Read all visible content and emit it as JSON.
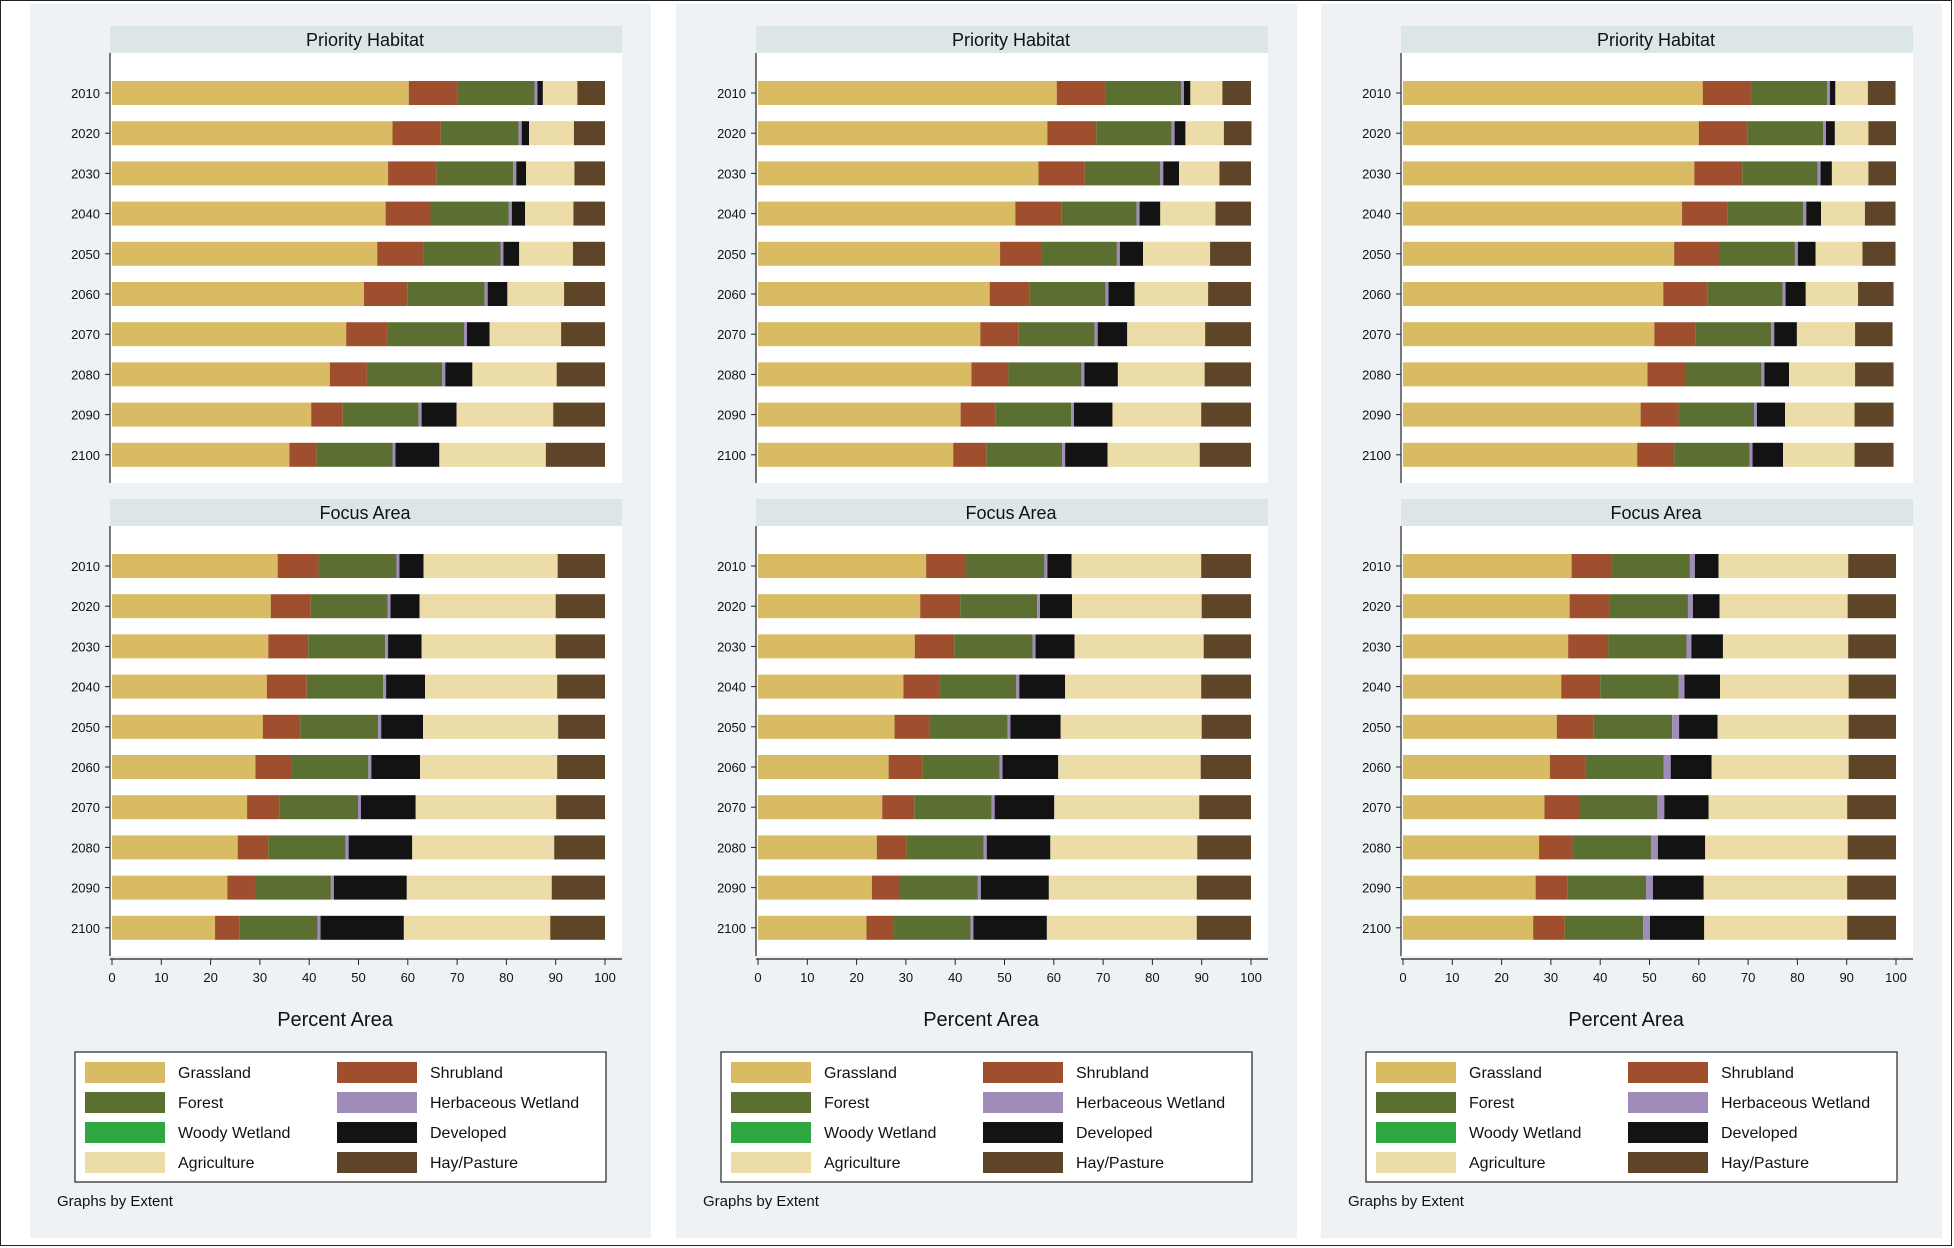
{
  "panels_note": "Graphs by Extent",
  "xlabel": "Percent Area",
  "xticks": [
    "0",
    "10",
    "20",
    "30",
    "40",
    "50",
    "60",
    "70",
    "80",
    "90",
    "100"
  ],
  "colors": {
    "Grassland": "#d8bb62",
    "Shrubland": "#a04f2e",
    "Forest": "#5b6f33",
    "Herbaceous Wetland": "#a08cb8",
    "Woody Wetland": "#2ea641",
    "Developed": "#131313",
    "Agriculture": "#ebdca8",
    "Hay/Pasture": "#5e4527"
  },
  "legend": [
    [
      "Grassland",
      "Shrubland"
    ],
    [
      "Forest",
      "Herbaceous Wetland"
    ],
    [
      "Woody Wetland",
      "Developed"
    ],
    [
      "Agriculture",
      "Hay/Pasture"
    ]
  ],
  "chart_data": [
    {
      "type": "bar",
      "orientation": "horizontal-stacked",
      "note": "Graphs by Extent",
      "xlabel": "Percent Area",
      "xlim": [
        0,
        100
      ],
      "series_order": [
        "Grassland",
        "Shrubland",
        "Forest",
        "Herbaceous Wetland",
        "Woody Wetland",
        "Developed",
        "Agriculture",
        "Hay/Pasture"
      ],
      "facets": [
        {
          "title": "Priority Habitat",
          "categories": [
            "2010",
            "2020",
            "2030",
            "2040",
            "2050",
            "2060",
            "2070",
            "2080",
            "2090",
            "2100"
          ],
          "series": [
            {
              "name": "Grassland",
              "values": [
                60.2,
                56.9,
                56.0,
                55.5,
                53.8,
                51.1,
                47.5,
                44.2,
                40.4,
                36.0
              ]
            },
            {
              "name": "Shrubland",
              "values": [
                9.9,
                9.8,
                9.8,
                9.1,
                9.3,
                8.9,
                8.3,
                7.5,
                6.4,
                5.5
              ]
            },
            {
              "name": "Forest",
              "values": [
                15.6,
                15.8,
                15.6,
                15.9,
                15.7,
                15.6,
                15.6,
                15.3,
                15.4,
                15.4
              ]
            },
            {
              "name": "Herbaceous Wetland",
              "values": [
                0.6,
                0.6,
                0.6,
                0.6,
                0.6,
                0.6,
                0.6,
                0.6,
                0.6,
                0.6
              ]
            },
            {
              "name": "Woody Wetland",
              "values": [
                0.0,
                0.0,
                0.0,
                0.0,
                0.0,
                0.0,
                0.0,
                0.0,
                0.0,
                0.0
              ]
            },
            {
              "name": "Developed",
              "values": [
                1.1,
                1.5,
                2.0,
                2.7,
                3.2,
                4.0,
                4.6,
                5.5,
                7.1,
                8.9
              ]
            },
            {
              "name": "Agriculture",
              "values": [
                7.0,
                9.1,
                9.8,
                9.8,
                10.9,
                11.5,
                14.5,
                17.1,
                19.6,
                21.6
              ]
            },
            {
              "name": "Hay/Pasture",
              "values": [
                5.6,
                6.3,
                6.2,
                6.4,
                6.5,
                8.3,
                8.9,
                9.8,
                10.5,
                12.0
              ]
            }
          ]
        },
        {
          "title": "Focus Area",
          "categories": [
            "2010",
            "2020",
            "2030",
            "2040",
            "2050",
            "2060",
            "2070",
            "2080",
            "2090",
            "2100"
          ],
          "series": [
            {
              "name": "Grassland",
              "values": [
                33.6,
                32.2,
                31.7,
                31.4,
                30.6,
                29.1,
                27.4,
                25.5,
                23.4,
                20.9
              ]
            },
            {
              "name": "Shrubland",
              "values": [
                8.3,
                8.1,
                8.1,
                8.1,
                7.6,
                7.3,
                6.6,
                6.2,
                5.6,
                5.0
              ]
            },
            {
              "name": "Forest",
              "values": [
                15.8,
                15.6,
                15.6,
                15.5,
                15.8,
                15.6,
                15.9,
                15.7,
                15.4,
                15.8
              ]
            },
            {
              "name": "Herbaceous Wetland",
              "values": [
                0.6,
                0.6,
                0.6,
                0.6,
                0.6,
                0.6,
                0.6,
                0.6,
                0.6,
                0.6
              ]
            },
            {
              "name": "Woody Wetland",
              "values": [
                0.0,
                0.0,
                0.0,
                0.0,
                0.0,
                0.0,
                0.0,
                0.0,
                0.0,
                0.0
              ]
            },
            {
              "name": "Developed",
              "values": [
                4.9,
                5.9,
                6.8,
                7.9,
                8.5,
                9.9,
                11.1,
                12.9,
                14.8,
                16.9
              ]
            },
            {
              "name": "Agriculture",
              "values": [
                27.2,
                27.6,
                27.2,
                26.8,
                27.4,
                27.8,
                28.5,
                28.8,
                29.4,
                29.7
              ]
            },
            {
              "name": "Hay/Pasture",
              "values": [
                9.6,
                10.0,
                10.0,
                9.7,
                9.5,
                9.7,
                9.9,
                10.3,
                10.8,
                11.1
              ]
            }
          ]
        }
      ]
    },
    {
      "type": "bar",
      "orientation": "horizontal-stacked",
      "note": "Graphs by Extent",
      "xlabel": "Percent Area",
      "xlim": [
        0,
        100
      ],
      "series_order": [
        "Grassland",
        "Shrubland",
        "Forest",
        "Herbaceous Wetland",
        "Woody Wetland",
        "Developed",
        "Agriculture",
        "Hay/Pasture"
      ],
      "facets": [
        {
          "title": "Priority Habitat",
          "categories": [
            "2010",
            "2020",
            "2030",
            "2040",
            "2050",
            "2060",
            "2070",
            "2080",
            "2090",
            "2100"
          ],
          "series": [
            {
              "name": "Grassland",
              "values": [
                60.6,
                58.7,
                56.9,
                52.2,
                49.1,
                47.0,
                45.1,
                43.3,
                41.1,
                39.6
              ]
            },
            {
              "name": "Shrubland",
              "values": [
                9.9,
                9.9,
                9.4,
                9.3,
                8.4,
                8.1,
                7.8,
                7.5,
                7.0,
                6.7
              ]
            },
            {
              "name": "Forest",
              "values": [
                15.3,
                15.3,
                15.3,
                15.3,
                15.3,
                15.4,
                15.4,
                14.8,
                15.4,
                15.4
              ]
            },
            {
              "name": "Herbaceous Wetland",
              "values": [
                0.6,
                0.6,
                0.6,
                0.6,
                0.6,
                0.6,
                0.6,
                0.6,
                0.6,
                0.6
              ]
            },
            {
              "name": "Woody Wetland",
              "values": [
                0.0,
                0.0,
                0.0,
                0.0,
                0.0,
                0.0,
                0.0,
                0.0,
                0.0,
                0.0
              ]
            },
            {
              "name": "Developed",
              "values": [
                1.3,
                2.2,
                3.2,
                4.2,
                4.7,
                5.3,
                6.0,
                6.8,
                7.8,
                8.6
              ]
            },
            {
              "name": "Agriculture",
              "values": [
                6.5,
                7.8,
                8.2,
                11.2,
                13.6,
                14.9,
                15.8,
                17.6,
                18.0,
                18.7
              ]
            },
            {
              "name": "Hay/Pasture",
              "values": [
                5.8,
                5.6,
                6.4,
                7.2,
                8.3,
                8.7,
                9.3,
                9.4,
                10.1,
                10.4
              ]
            }
          ]
        },
        {
          "title": "Focus Area",
          "categories": [
            "2010",
            "2020",
            "2030",
            "2040",
            "2050",
            "2060",
            "2070",
            "2080",
            "2090",
            "2100"
          ],
          "series": [
            {
              "name": "Grassland",
              "values": [
                34.1,
                32.9,
                31.8,
                29.5,
                27.7,
                26.5,
                25.2,
                24.1,
                23.1,
                22.0
              ]
            },
            {
              "name": "Shrubland",
              "values": [
                8.1,
                8.1,
                8.0,
                7.3,
                7.0,
                6.9,
                6.5,
                6.0,
                5.6,
                5.6
              ]
            },
            {
              "name": "Forest",
              "values": [
                15.9,
                15.6,
                15.9,
                15.6,
                15.9,
                15.6,
                15.7,
                15.7,
                15.9,
                15.5
              ]
            },
            {
              "name": "Herbaceous Wetland",
              "values": [
                0.6,
                0.6,
                0.6,
                0.6,
                0.6,
                0.6,
                0.6,
                0.6,
                0.6,
                0.6
              ]
            },
            {
              "name": "Woody Wetland",
              "values": [
                0.0,
                0.0,
                0.0,
                0.0,
                0.0,
                0.0,
                0.0,
                0.0,
                0.0,
                0.0
              ]
            },
            {
              "name": "Developed",
              "values": [
                4.9,
                6.5,
                7.9,
                9.3,
                10.2,
                11.3,
                12.1,
                12.9,
                13.8,
                14.9
              ]
            },
            {
              "name": "Agriculture",
              "values": [
                26.3,
                26.3,
                26.2,
                27.6,
                28.6,
                28.9,
                29.4,
                29.8,
                30.0,
                30.4
              ]
            },
            {
              "name": "Hay/Pasture",
              "values": [
                10.1,
                10.0,
                9.6,
                10.1,
                10.0,
                10.2,
                10.5,
                10.9,
                11.0,
                11.0
              ]
            }
          ]
        }
      ]
    },
    {
      "type": "bar",
      "orientation": "horizontal-stacked",
      "note": "Graphs by Extent",
      "xlabel": "Percent Area",
      "xlim": [
        0,
        100
      ],
      "series_order": [
        "Grassland",
        "Shrubland",
        "Forest",
        "Herbaceous Wetland",
        "Woody Wetland",
        "Developed",
        "Agriculture",
        "Hay/Pasture"
      ],
      "facets": [
        {
          "title": "Priority Habitat",
          "categories": [
            "2010",
            "2020",
            "2030",
            "2040",
            "2050",
            "2060",
            "2070",
            "2080",
            "2090",
            "2100"
          ],
          "series": [
            {
              "name": "Grassland",
              "values": [
                60.8,
                60.0,
                59.1,
                56.6,
                55.0,
                52.8,
                51.0,
                49.6,
                48.2,
                47.5
              ]
            },
            {
              "name": "Shrubland",
              "values": [
                9.9,
                9.9,
                9.7,
                9.3,
                9.2,
                8.9,
                8.4,
                7.8,
                7.7,
                7.5
              ]
            },
            {
              "name": "Forest",
              "values": [
                15.3,
                15.3,
                15.3,
                15.3,
                15.3,
                15.3,
                15.3,
                15.3,
                15.3,
                15.3
              ]
            },
            {
              "name": "Herbaceous Wetland",
              "values": [
                0.6,
                0.6,
                0.6,
                0.6,
                0.6,
                0.6,
                0.6,
                0.6,
                0.6,
                0.6
              ]
            },
            {
              "name": "Woody Wetland",
              "values": [
                0.0,
                0.0,
                0.0,
                0.0,
                0.0,
                0.0,
                0.0,
                0.0,
                0.0,
                0.0
              ]
            },
            {
              "name": "Developed",
              "values": [
                1.1,
                1.8,
                2.3,
                3.0,
                3.6,
                4.1,
                4.6,
                5.0,
                5.7,
                6.2
              ]
            },
            {
              "name": "Agriculture",
              "values": [
                6.6,
                6.8,
                7.4,
                8.9,
                9.5,
                10.6,
                11.8,
                13.4,
                14.1,
                14.5
              ]
            },
            {
              "name": "Hay/Pasture",
              "values": [
                5.6,
                5.6,
                5.6,
                6.2,
                6.7,
                7.2,
                7.6,
                7.8,
                7.9,
                7.9
              ]
            }
          ]
        },
        {
          "title": "Focus Area",
          "categories": [
            "2010",
            "2020",
            "2030",
            "2040",
            "2050",
            "2060",
            "2070",
            "2080",
            "2090",
            "2100"
          ],
          "series": [
            {
              "name": "Grassland",
              "values": [
                34.2,
                33.8,
                33.5,
                32.1,
                31.2,
                29.8,
                28.7,
                27.6,
                26.9,
                26.4
              ]
            },
            {
              "name": "Shrubland",
              "values": [
                8.1,
                8.1,
                8.1,
                7.9,
                7.5,
                7.2,
                7.0,
                6.8,
                6.5,
                6.4
              ]
            },
            {
              "name": "Forest",
              "values": [
                15.9,
                15.9,
                15.9,
                15.9,
                15.9,
                15.9,
                15.9,
                15.9,
                15.9,
                15.9
              ]
            },
            {
              "name": "Herbaceous Wetland",
              "values": [
                1.0,
                1.0,
                1.0,
                1.2,
                1.4,
                1.4,
                1.4,
                1.4,
                1.4,
                1.4
              ]
            },
            {
              "name": "Woody Wetland",
              "values": [
                0.0,
                0.0,
                0.0,
                0.0,
                0.0,
                0.0,
                0.0,
                0.0,
                0.0,
                0.0
              ]
            },
            {
              "name": "Developed",
              "values": [
                4.8,
                5.4,
                6.4,
                7.2,
                7.8,
                8.3,
                9.0,
                9.6,
                10.3,
                11.0
              ]
            },
            {
              "name": "Agriculture",
              "values": [
                26.3,
                26.0,
                25.4,
                26.1,
                26.6,
                27.8,
                28.1,
                28.9,
                29.1,
                29.0
              ]
            },
            {
              "name": "Hay/Pasture",
              "values": [
                9.7,
                9.8,
                9.7,
                9.6,
                9.6,
                9.6,
                9.9,
                9.8,
                9.9,
                9.9
              ]
            }
          ]
        }
      ]
    }
  ]
}
